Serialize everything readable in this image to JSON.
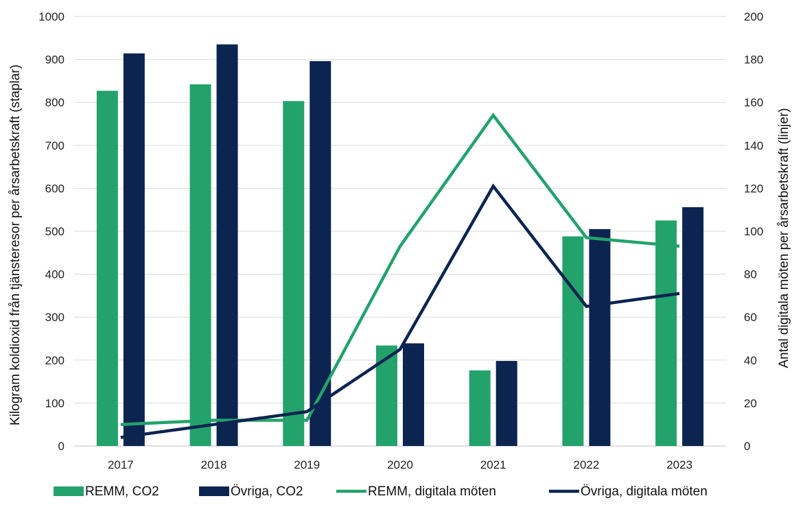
{
  "chart_data": {
    "type": "bar",
    "categories": [
      "2017",
      "2018",
      "2019",
      "2020",
      "2021",
      "2022",
      "2023"
    ],
    "bar_series": [
      {
        "name": "REMM, CO2",
        "color": "#23a26c",
        "values": [
          827,
          842,
          803,
          234,
          176,
          488,
          525
        ]
      },
      {
        "name": "Övriga, CO2",
        "color": "#0c2450",
        "values": [
          914,
          935,
          896,
          239,
          198,
          505,
          556
        ]
      }
    ],
    "line_series": [
      {
        "name": "REMM, digitala möten",
        "color": "#23a26c",
        "values": [
          10,
          12,
          12,
          93,
          154,
          97,
          93
        ]
      },
      {
        "name": "Övriga, digitala möten",
        "color": "#0c2450",
        "values": [
          4,
          10,
          16,
          45,
          121,
          65,
          71
        ]
      }
    ],
    "ylabel_left": "Kilogram koldioxid från tjänsteresor per årsarbetskraft (staplar)",
    "ylabel_right": "Antal digitala möten per årsarbetskraft (linjer)",
    "ylim_left": [
      0,
      1000
    ],
    "yticks_left": [
      "0",
      "100",
      "200",
      "300",
      "400",
      "500",
      "600",
      "700",
      "800",
      "900",
      "1000"
    ],
    "ylim_right": [
      0,
      200
    ],
    "yticks_right": [
      "0",
      "20",
      "40",
      "60",
      "80",
      "100",
      "120",
      "140",
      "160",
      "180",
      "200"
    ],
    "grid": true,
    "legend_position": "bottom"
  }
}
